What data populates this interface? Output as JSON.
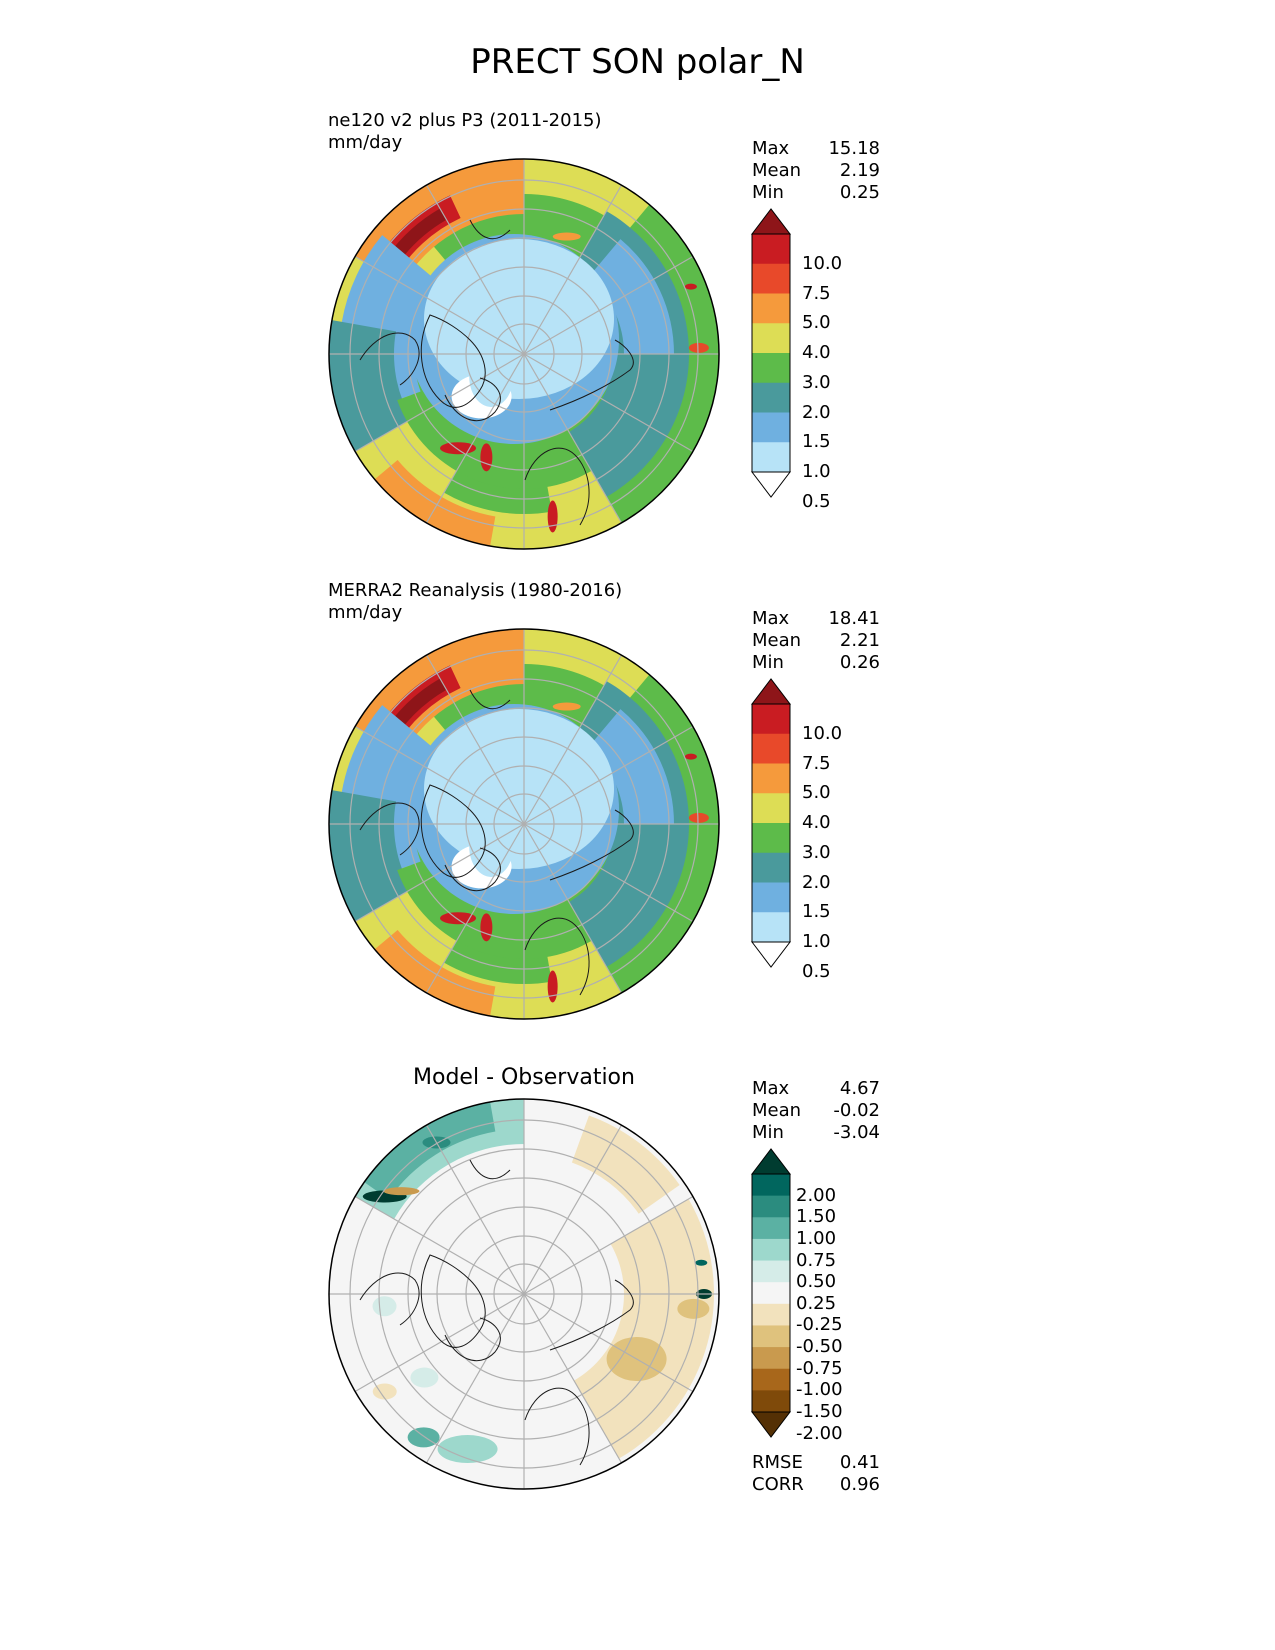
{
  "main_title": "PRECT SON polar_N",
  "panels": [
    {
      "title": "ne120 v2 plus P3 (2011-2015)",
      "units": "mm/day",
      "stats": [
        {
          "label": "Max",
          "value": "15.18"
        },
        {
          "label": "Mean",
          "value": "2.19"
        },
        {
          "label": "Min",
          "value": "0.25"
        }
      ],
      "cbar_ticks": [
        "10.0",
        "7.5",
        "5.0",
        "4.0",
        "3.0",
        "2.0",
        "1.5",
        "1.0",
        "0.5"
      ]
    },
    {
      "title": "MERRA2 Reanalysis (1980-2016)",
      "units": "mm/day",
      "stats": [
        {
          "label": "Max",
          "value": "18.41"
        },
        {
          "label": "Mean",
          "value": "2.21"
        },
        {
          "label": "Min",
          "value": "0.26"
        }
      ],
      "cbar_ticks": [
        "10.0",
        "7.5",
        "5.0",
        "4.0",
        "3.0",
        "2.0",
        "1.5",
        "1.0",
        "0.5"
      ]
    },
    {
      "title": "Model - Observation",
      "stats": [
        {
          "label": "Max",
          "value": "4.67"
        },
        {
          "label": "Mean",
          "value": "-0.02"
        },
        {
          "label": "Min",
          "value": "-3.04"
        }
      ],
      "cbar_ticks": [
        "2.00",
        "1.50",
        "1.00",
        "0.75",
        "0.50",
        "0.25",
        "-0.25",
        "-0.50",
        "-0.75",
        "-1.00",
        "-1.50",
        "-2.00"
      ],
      "metrics": [
        {
          "label": "RMSE",
          "value": "0.41"
        },
        {
          "label": "CORR",
          "value": "0.96"
        }
      ]
    }
  ],
  "chart_data": {
    "type": "heatmap",
    "projection": "north polar stereographic",
    "variable": "PRECT",
    "season": "SON",
    "region": "polar_N",
    "colormaps": {
      "precip": {
        "levels": [
          0.5,
          1.0,
          1.5,
          2.0,
          3.0,
          4.0,
          5.0,
          7.5,
          10.0
        ],
        "colors": [
          "#ffffff",
          "#b7e3f7",
          "#6fb0e0",
          "#4a9a9c",
          "#5dbb4a",
          "#dddd55",
          "#f59a3c",
          "#e8492a",
          "#c91c22",
          "#8e1519"
        ]
      },
      "diff": {
        "levels": [
          -2.0,
          -1.5,
          -1.0,
          -0.75,
          -0.5,
          -0.25,
          0.25,
          0.5,
          0.75,
          1.0,
          1.5,
          2.0
        ],
        "colors": [
          "#543005",
          "#7f4a0a",
          "#a8671b",
          "#c99a4e",
          "#dfc27d",
          "#f2e2bd",
          "#f5f5f5",
          "#d5ece8",
          "#9dd8cc",
          "#5bb1a3",
          "#2b8c7f",
          "#01665e",
          "#003c30"
        ]
      }
    }
  }
}
